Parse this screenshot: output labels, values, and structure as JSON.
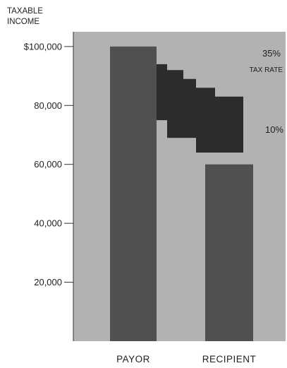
{
  "chart_data": {
    "type": "bar",
    "yaxis_title_lines": [
      "TAXABLE",
      "INCOME"
    ],
    "yticks": [
      {
        "value": 100000,
        "label": "$100,000"
      },
      {
        "value": 80000,
        "label": "80,000"
      },
      {
        "value": 60000,
        "label": "60,000"
      },
      {
        "value": 40000,
        "label": "40,000"
      },
      {
        "value": 20000,
        "label": "20,000"
      }
    ],
    "ylim": [
      0,
      105000
    ],
    "categories": [
      "PAYOR",
      "RECIPIENT"
    ],
    "bars": [
      {
        "category": "PAYOR",
        "bottom": 0,
        "top": 100000
      },
      {
        "category": "RECIPIENT",
        "bottom": 0,
        "top": 60000
      }
    ],
    "transfer_steps": [
      {
        "bottom": 75000,
        "top": 94000
      },
      {
        "bottom": 69000,
        "top": 92000
      },
      {
        "bottom": 69000,
        "top": 89000
      },
      {
        "bottom": 64000,
        "top": 86000
      },
      {
        "bottom": 64000,
        "top": 83000
      }
    ],
    "annotations": {
      "rate_high_value": "35%",
      "rate_high_caption": "TAX RATE",
      "rate_low_value": "10%"
    },
    "colors": {
      "plot_background": "#b2b2b2",
      "bar": "#505050",
      "transfer": "#2c2c2c",
      "text": "#222222"
    },
    "grid": false
  }
}
